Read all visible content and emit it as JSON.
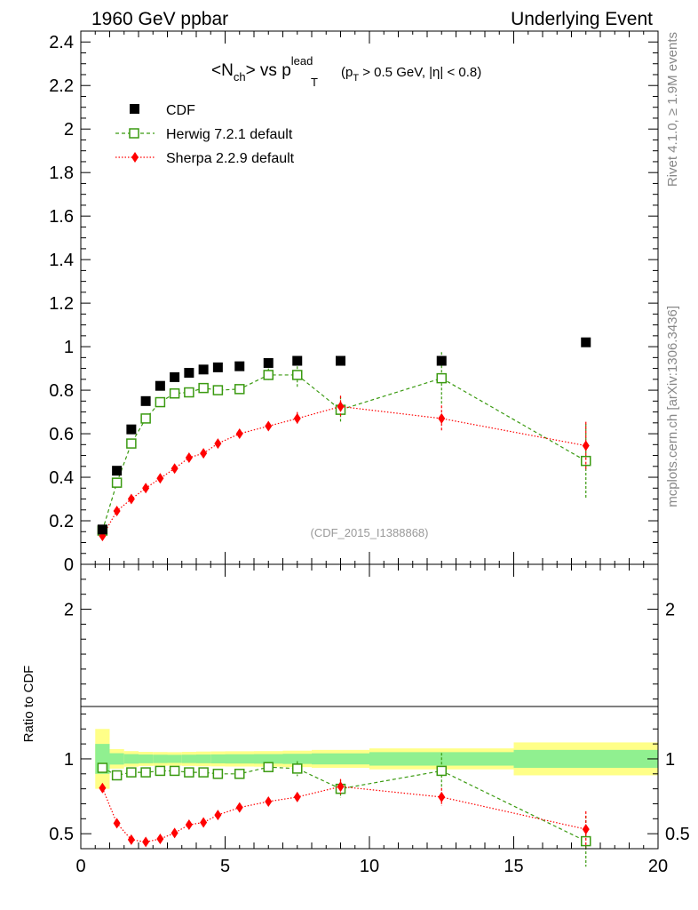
{
  "header": {
    "left": "1960 GeV ppbar",
    "right": "Underlying Event"
  },
  "side_labels": {
    "rivet": "Rivet 4.1.0, ≥ 1.9M events",
    "mcplots": "mcplots.cern.ch [arXiv:1306.3436]"
  },
  "title": {
    "pre": "<N",
    "sub_ch": "ch",
    "mid": "> vs p",
    "sup_lead": "lead",
    "sub_T": "T",
    "cut_open": "(p",
    "cut_sub": "T",
    "cut_rest": " > 0.5 GeV, |η| < 0.8)"
  },
  "watermark": "(CDF_2015_I1388868)",
  "ratio_ylabel": "Ratio to CDF",
  "colors": {
    "cdf": "#000000",
    "herwig": "#3a9a10",
    "sherpa": "#ff0000",
    "band_outer": "#ffff88",
    "band_inner": "#90f090"
  },
  "legend": [
    {
      "name": "CDF",
      "marker": "filled-square"
    },
    {
      "name": "Herwig 7.2.1 default",
      "marker": "open-square-dashed"
    },
    {
      "name": "Sherpa 2.2.9 default",
      "marker": "diamond-dotted"
    }
  ],
  "chart_data": {
    "type": "scatter",
    "xlabel": "",
    "xlim": [
      0,
      20
    ],
    "x_ticks": [
      0,
      5,
      10,
      15,
      20
    ],
    "main": {
      "ylim": [
        0,
        2.45
      ],
      "y_ticks": [
        "0",
        "0.2",
        "0.4",
        "0.6",
        "0.8",
        "1",
        "1.2",
        "1.4",
        "1.6",
        "1.8",
        "2",
        "2.2",
        "2.4"
      ],
      "series": [
        {
          "name": "CDF",
          "x": [
            0.75,
            1.25,
            1.75,
            2.25,
            2.75,
            3.25,
            3.75,
            4.25,
            4.75,
            5.5,
            6.5,
            7.5,
            9,
            12.5,
            17.5
          ],
          "y": [
            0.16,
            0.43,
            0.62,
            0.75,
            0.82,
            0.86,
            0.88,
            0.895,
            0.905,
            0.91,
            0.925,
            0.935,
            0.935,
            0.935,
            1.02
          ]
        },
        {
          "name": "Herwig 7.2.1 default",
          "x": [
            0.75,
            1.25,
            1.75,
            2.25,
            2.75,
            3.25,
            3.75,
            4.25,
            4.75,
            5.5,
            6.5,
            7.5,
            9,
            12.5,
            17.5
          ],
          "y": [
            0.155,
            0.375,
            0.555,
            0.67,
            0.745,
            0.785,
            0.79,
            0.81,
            0.8,
            0.805,
            0.87,
            0.87,
            0.71,
            0.855,
            0.475
          ],
          "err": [
            0.01,
            0.01,
            0.01,
            0.012,
            0.012,
            0.014,
            0.014,
            0.015,
            0.015,
            0.015,
            0.03,
            0.06,
            0.06,
            0.12,
            0.17
          ]
        },
        {
          "name": "Sherpa 2.2.9 default",
          "x": [
            0.75,
            1.25,
            1.75,
            2.25,
            2.75,
            3.25,
            3.75,
            4.25,
            4.75,
            5.5,
            6.5,
            7.5,
            9,
            12.5,
            17.5
          ],
          "y": [
            0.13,
            0.245,
            0.3,
            0.35,
            0.395,
            0.44,
            0.49,
            0.51,
            0.555,
            0.6,
            0.635,
            0.67,
            0.725,
            0.67,
            0.545
          ],
          "err": [
            0.005,
            0.005,
            0.005,
            0.006,
            0.006,
            0.007,
            0.007,
            0.008,
            0.008,
            0.01,
            0.02,
            0.03,
            0.05,
            0.06,
            0.11
          ]
        }
      ]
    },
    "ratio": {
      "ylim": [
        0.4,
        2.3
      ],
      "y_ticks": [
        "0.5",
        "1",
        "2"
      ],
      "reference": 1,
      "band_edges": [
        0.5,
        1,
        1.5,
        2,
        2.5,
        3,
        3.5,
        4,
        4.5,
        5,
        6,
        7,
        8,
        10,
        15,
        20
      ],
      "band_outer": [
        0.2,
        0.065,
        0.052,
        0.047,
        0.046,
        0.045,
        0.047,
        0.049,
        0.05,
        0.051,
        0.052,
        0.055,
        0.06,
        0.07,
        0.11
      ],
      "band_inner": [
        0.1,
        0.038,
        0.032,
        0.029,
        0.028,
        0.027,
        0.028,
        0.029,
        0.03,
        0.031,
        0.032,
        0.034,
        0.037,
        0.045,
        0.06
      ],
      "series": [
        {
          "name": "Herwig 7.2.1 default",
          "x": [
            0.75,
            1.25,
            1.75,
            2.25,
            2.75,
            3.25,
            3.75,
            4.25,
            4.75,
            5.5,
            6.5,
            7.5,
            9,
            12.5,
            17.5
          ],
          "y": [
            0.94,
            0.89,
            0.91,
            0.91,
            0.92,
            0.92,
            0.91,
            0.91,
            0.9,
            0.9,
            0.945,
            0.935,
            0.8,
            0.92,
            0.45
          ],
          "err": [
            0.02,
            0.01,
            0.01,
            0.01,
            0.01,
            0.01,
            0.01,
            0.01,
            0.01,
            0.01,
            0.03,
            0.05,
            0.06,
            0.12,
            0.17
          ]
        },
        {
          "name": "Sherpa 2.2.9 default",
          "x": [
            0.75,
            1.25,
            1.75,
            2.25,
            2.75,
            3.25,
            3.75,
            4.25,
            4.75,
            5.5,
            6.5,
            7.5,
            9,
            12.5,
            17.5
          ],
          "y": [
            0.805,
            0.57,
            0.46,
            0.445,
            0.465,
            0.505,
            0.56,
            0.575,
            0.625,
            0.675,
            0.715,
            0.745,
            0.815,
            0.745,
            0.53
          ],
          "err": [
            0.02,
            0.01,
            0.01,
            0.01,
            0.01,
            0.01,
            0.01,
            0.01,
            0.01,
            0.01,
            0.02,
            0.03,
            0.05,
            0.06,
            0.12
          ]
        }
      ]
    }
  }
}
